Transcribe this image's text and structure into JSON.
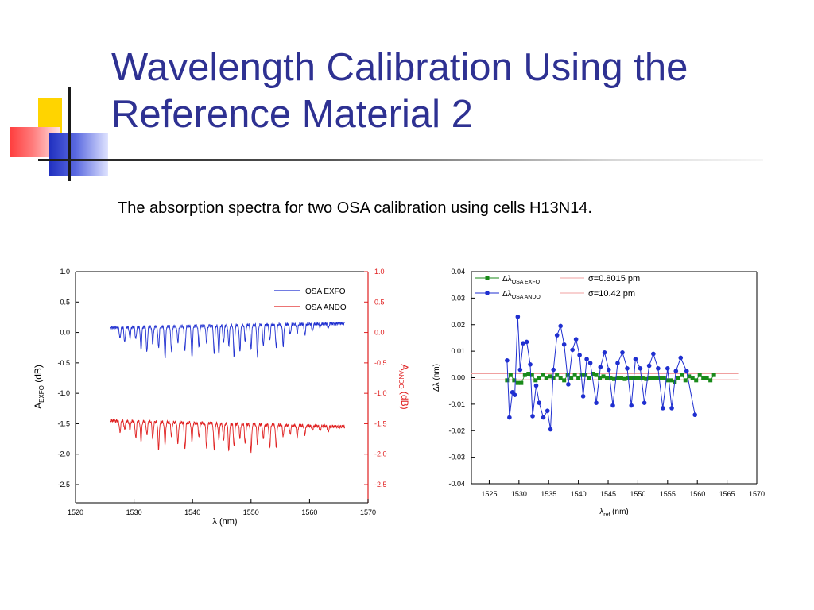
{
  "slide": {
    "title_line1": "Wavelength Calibration Using the",
    "title_line2": "Reference Material 2",
    "subtitle": "The absorption spectra for two OSA calibration using cells H13N14.",
    "colors": {
      "title": "#2e3192",
      "exfo": "#1f2fd0",
      "ando": "#e02020",
      "deviation_exfo": "#1a8a1a",
      "deviation_ando": "#1f2fd0",
      "sigma_line": "#f0a0a0"
    }
  },
  "chart_data": [
    {
      "type": "line",
      "xlabel": "λ (nm)",
      "ylabel_left": "A_EXFO (dB)",
      "ylabel_right": "A_ANDO (dB)",
      "xlim": [
        1520,
        1570
      ],
      "ylim": [
        -2.8,
        1.0
      ],
      "xticks": [
        "1520",
        "1530",
        "1540",
        "1550",
        "1560",
        "1570"
      ],
      "yticks_left": [
        "1.0",
        "0.5",
        "0.0",
        "-0.5",
        "-1.0",
        "-1.5",
        "-2.0",
        "-2.5"
      ],
      "yticks_right": [
        "1.0",
        "0.5",
        "0.0",
        "-0.5",
        "-1.0",
        "-1.5",
        "-2.0",
        "-2.5"
      ],
      "legend_position": "top-right",
      "series": [
        {
          "name": "OSA EXFO",
          "baseline": 0.08,
          "end_value": 0.15,
          "x_range": [
            1526,
            1566
          ],
          "color": "#1f2fd0"
        },
        {
          "name": "OSA ANDO",
          "baseline": -1.45,
          "end_value": -1.55,
          "x_range": [
            1526,
            1566
          ],
          "color": "#e02020"
        }
      ],
      "absorption_lines_nm": [
        1527.6,
        1528.4,
        1529.3,
        1530.3,
        1531.2,
        1532.2,
        1533.2,
        1534.2,
        1535.3,
        1536.4,
        1537.5,
        1538.7,
        1539.9,
        1541.1,
        1542.4,
        1543.7,
        1544.5,
        1545.3,
        1546.2,
        1547.1,
        1548.1,
        1549.0,
        1550.0,
        1551.1,
        1552.1,
        1553.2,
        1554.3,
        1555.5,
        1556.7,
        1557.9,
        1559.2,
        1560.5,
        1561.8,
        1563.2
      ],
      "band_centers_nm": [
        1536.5,
        1549.5
      ],
      "max_depth_exfo": 0.52,
      "max_depth_ando": 0.45
    },
    {
      "type": "scatter",
      "xlabel": "λ_ref (nm)",
      "ylabel": "Δλ (nm)",
      "xlim": [
        1522,
        1570
      ],
      "ylim": [
        -0.04,
        0.04
      ],
      "xticks": [
        "1525",
        "1530",
        "1535",
        "1540",
        "1545",
        "1550",
        "1555",
        "1560",
        "1565",
        "1570"
      ],
      "yticks": [
        "0.04",
        "0.03",
        "0.02",
        "0.01",
        "0.00",
        "-0.01",
        "-0.02",
        "-0.03",
        "-0.04"
      ],
      "legend": [
        {
          "label": "Δλ",
          "sub": "OSA EXFO"
        },
        {
          "label": "Δλ",
          "sub": "OSA ANDO"
        }
      ],
      "sigma_labels": [
        "σ=0.8015 pm",
        "σ=10.42 pm"
      ],
      "sigma_lines": {
        "x_range": [
          1522,
          1567
        ],
        "values": [
          0.0015,
          -0.0008
        ]
      },
      "series": [
        {
          "name": "OSA EXFO",
          "x": [
            1528,
            1528.6,
            1529.2,
            1529.8,
            1530.4,
            1531,
            1531.6,
            1532.2,
            1532.8,
            1533.4,
            1534,
            1534.6,
            1535.2,
            1535.8,
            1536.4,
            1537,
            1537.6,
            1538.2,
            1538.8,
            1539.4,
            1540,
            1540.6,
            1541.2,
            1541.8,
            1542.4,
            1543,
            1543.6,
            1544.2,
            1544.8,
            1545.4,
            1546,
            1546.6,
            1547.2,
            1547.8,
            1548.4,
            1549,
            1549.6,
            1550.2,
            1550.8,
            1551.4,
            1552,
            1552.6,
            1553.2,
            1553.8,
            1554.4,
            1555,
            1555.6,
            1556.2,
            1556.8,
            1557.4,
            1558,
            1558.6,
            1559.2,
            1559.8,
            1560.4,
            1561,
            1561.6,
            1562.2,
            1562.8
          ],
          "y": [
            -0.001,
            0.001,
            -0.001,
            -0.002,
            -0.002,
            0.001,
            0.0015,
            0.001,
            -0.001,
            0.0,
            0.001,
            0.0,
            0.0005,
            0.0,
            0.001,
            0.0,
            -0.001,
            0.001,
            0.0,
            0.001,
            0.0,
            0.001,
            0.001,
            0.0,
            0.0015,
            0.001,
            0.0,
            0.0005,
            0.0,
            0.0,
            -0.0005,
            0.0,
            0.0,
            -0.0005,
            0.0,
            0.0,
            0.0,
            0.0,
            0.0,
            -0.0005,
            0.0,
            0.0,
            0.0,
            0.0,
            0.0,
            -0.001,
            -0.001,
            -0.0015,
            0.0,
            0.001,
            -0.001,
            0.0005,
            0.0,
            -0.001,
            0.001,
            0.0,
            0.0,
            -0.001,
            0.001
          ]
        },
        {
          "name": "OSA ANDO",
          "x": [
            1528,
            1528.4,
            1528.9,
            1529.3,
            1529.8,
            1530.2,
            1530.7,
            1531.3,
            1531.9,
            1532.3,
            1532.9,
            1533.4,
            1534.1,
            1534.8,
            1535.3,
            1535.8,
            1536.4,
            1537,
            1537.6,
            1538.3,
            1539,
            1539.6,
            1540.2,
            1540.8,
            1541.4,
            1542,
            1543,
            1543.7,
            1544.4,
            1545.1,
            1545.8,
            1546.6,
            1547.4,
            1548.2,
            1548.9,
            1549.6,
            1550.4,
            1551.1,
            1551.9,
            1552.6,
            1553.4,
            1554.2,
            1555,
            1555.7,
            1556.4,
            1557.2,
            1558.2,
            1559.6
          ],
          "y": [
            0.0065,
            -0.015,
            -0.0055,
            -0.0065,
            0.023,
            0.003,
            0.013,
            0.0135,
            0.005,
            -0.0145,
            -0.003,
            -0.0095,
            -0.015,
            -0.0125,
            -0.0195,
            0.003,
            0.016,
            0.0195,
            0.0125,
            -0.0025,
            0.0105,
            0.0145,
            0.0085,
            -0.007,
            0.007,
            0.0055,
            -0.0095,
            0.004,
            0.0095,
            0.003,
            -0.0105,
            0.0055,
            0.0095,
            0.0035,
            -0.0105,
            0.007,
            0.0035,
            -0.0095,
            0.0045,
            0.009,
            0.0035,
            -0.0115,
            0.0035,
            -0.0115,
            0.0025,
            0.0075,
            0.0025,
            -0.014
          ]
        }
      ]
    }
  ]
}
